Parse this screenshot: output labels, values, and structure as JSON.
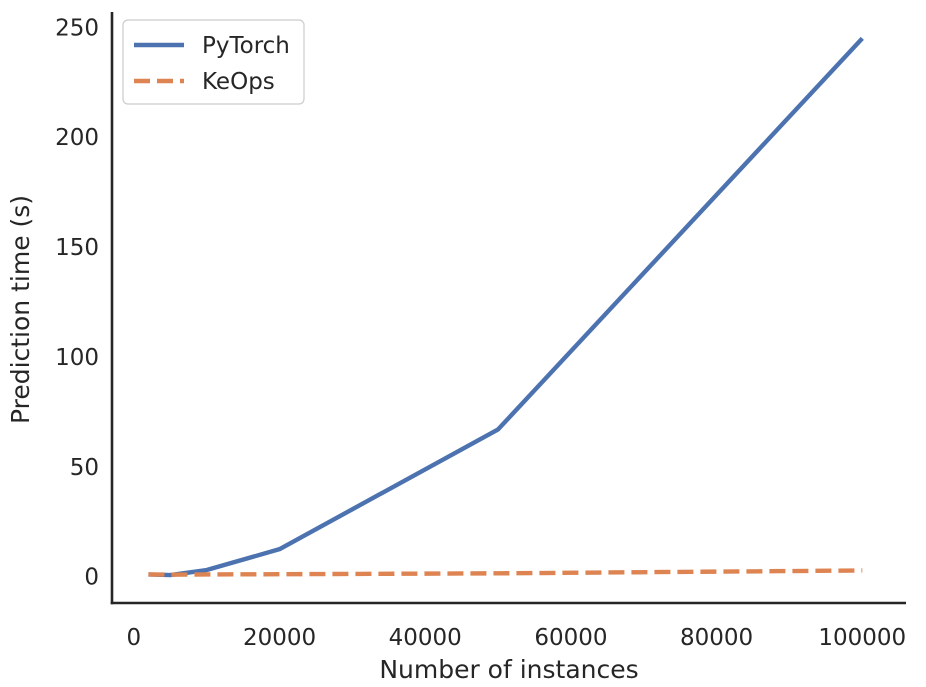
{
  "chart_data": {
    "type": "line",
    "title": "",
    "xlabel": "Number of instances",
    "ylabel": "Prediction time (s)",
    "xlim": [
      -3000,
      106000
    ],
    "ylim": [
      -12,
      257
    ],
    "xticks": [
      0,
      20000,
      40000,
      60000,
      80000,
      100000
    ],
    "xtick_labels": [
      "0",
      "20000",
      "40000",
      "60000",
      "80000",
      "100000"
    ],
    "yticks": [
      0,
      50,
      100,
      150,
      200,
      250
    ],
    "ytick_labels": [
      "0",
      "50",
      "100",
      "150",
      "200",
      "250"
    ],
    "grid": false,
    "legend_position": "top-left",
    "series": [
      {
        "name": "PyTorch",
        "color": "#4c72b0",
        "style": "solid",
        "x": [
          2000,
          5000,
          10000,
          20000,
          50000,
          100000
        ],
        "y": [
          1.0,
          0.7,
          3.0,
          12.5,
          67.0,
          245.0
        ]
      },
      {
        "name": "KeOps",
        "color": "#dd8452",
        "style": "dashed",
        "x": [
          2000,
          5000,
          10000,
          20000,
          50000,
          100000
        ],
        "y": [
          1.0,
          0.9,
          1.0,
          1.1,
          1.5,
          2.8
        ]
      }
    ]
  }
}
